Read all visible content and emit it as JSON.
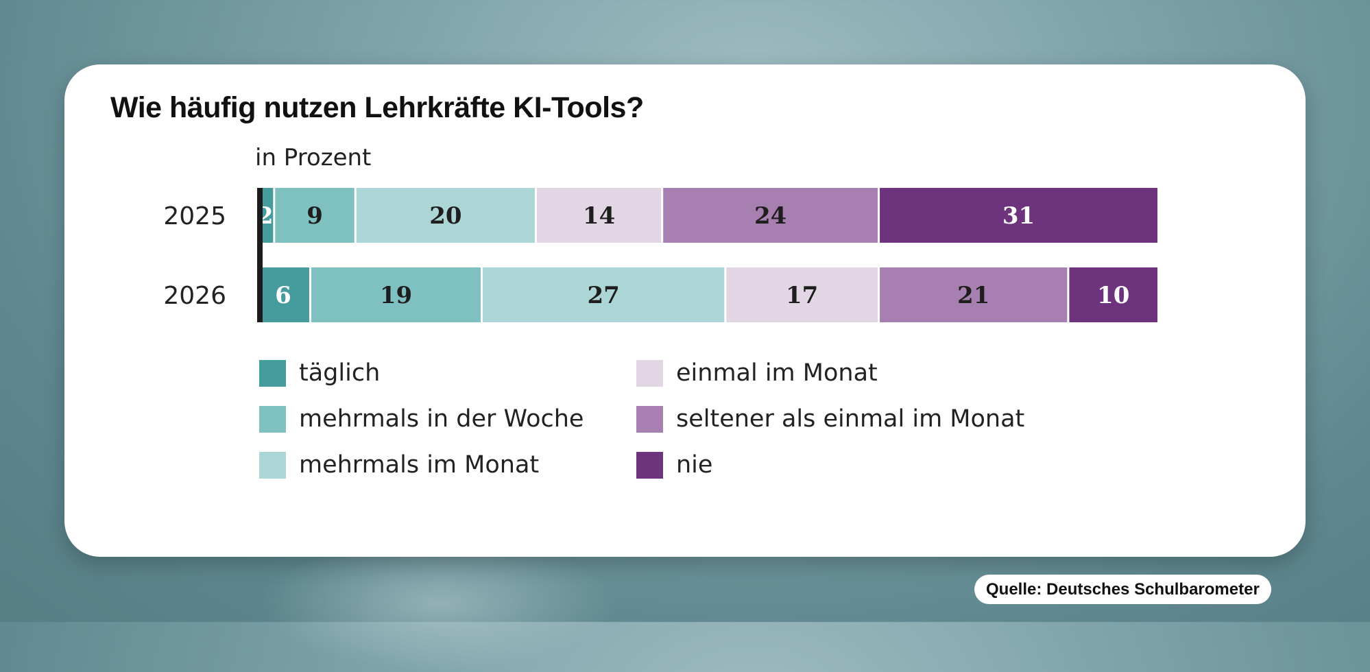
{
  "chart_data": {
    "type": "bar",
    "orientation": "horizontal",
    "stacked": true,
    "title": "Wie häufig nutzen Lehrkräfte KI-Tools?",
    "subtitle": "in Prozent",
    "categories": [
      "2025",
      "2026"
    ],
    "series": [
      {
        "name": "täglich",
        "color": "#469c9d",
        "values": [
          2,
          6
        ]
      },
      {
        "name": "mehrmals in der Woche",
        "color": "#7fc0c1",
        "values": [
          9,
          19
        ]
      },
      {
        "name": "mehrmals im Monat",
        "color": "#acd6d6",
        "values": [
          20,
          27
        ]
      },
      {
        "name": "einmal im Monat",
        "color": "#e2d6e5",
        "values": [
          14,
          17
        ]
      },
      {
        "name": "seltener als einmal im Monat",
        "color": "#a77fb1",
        "values": [
          24,
          21
        ]
      },
      {
        "name": "nie",
        "color": "#6e337d",
        "values": [
          31,
          10
        ]
      }
    ],
    "xlim": [
      0,
      100
    ],
    "legend_position": "bottom",
    "grid": false
  },
  "source": "Quelle: Deutsches Schulbarometer"
}
